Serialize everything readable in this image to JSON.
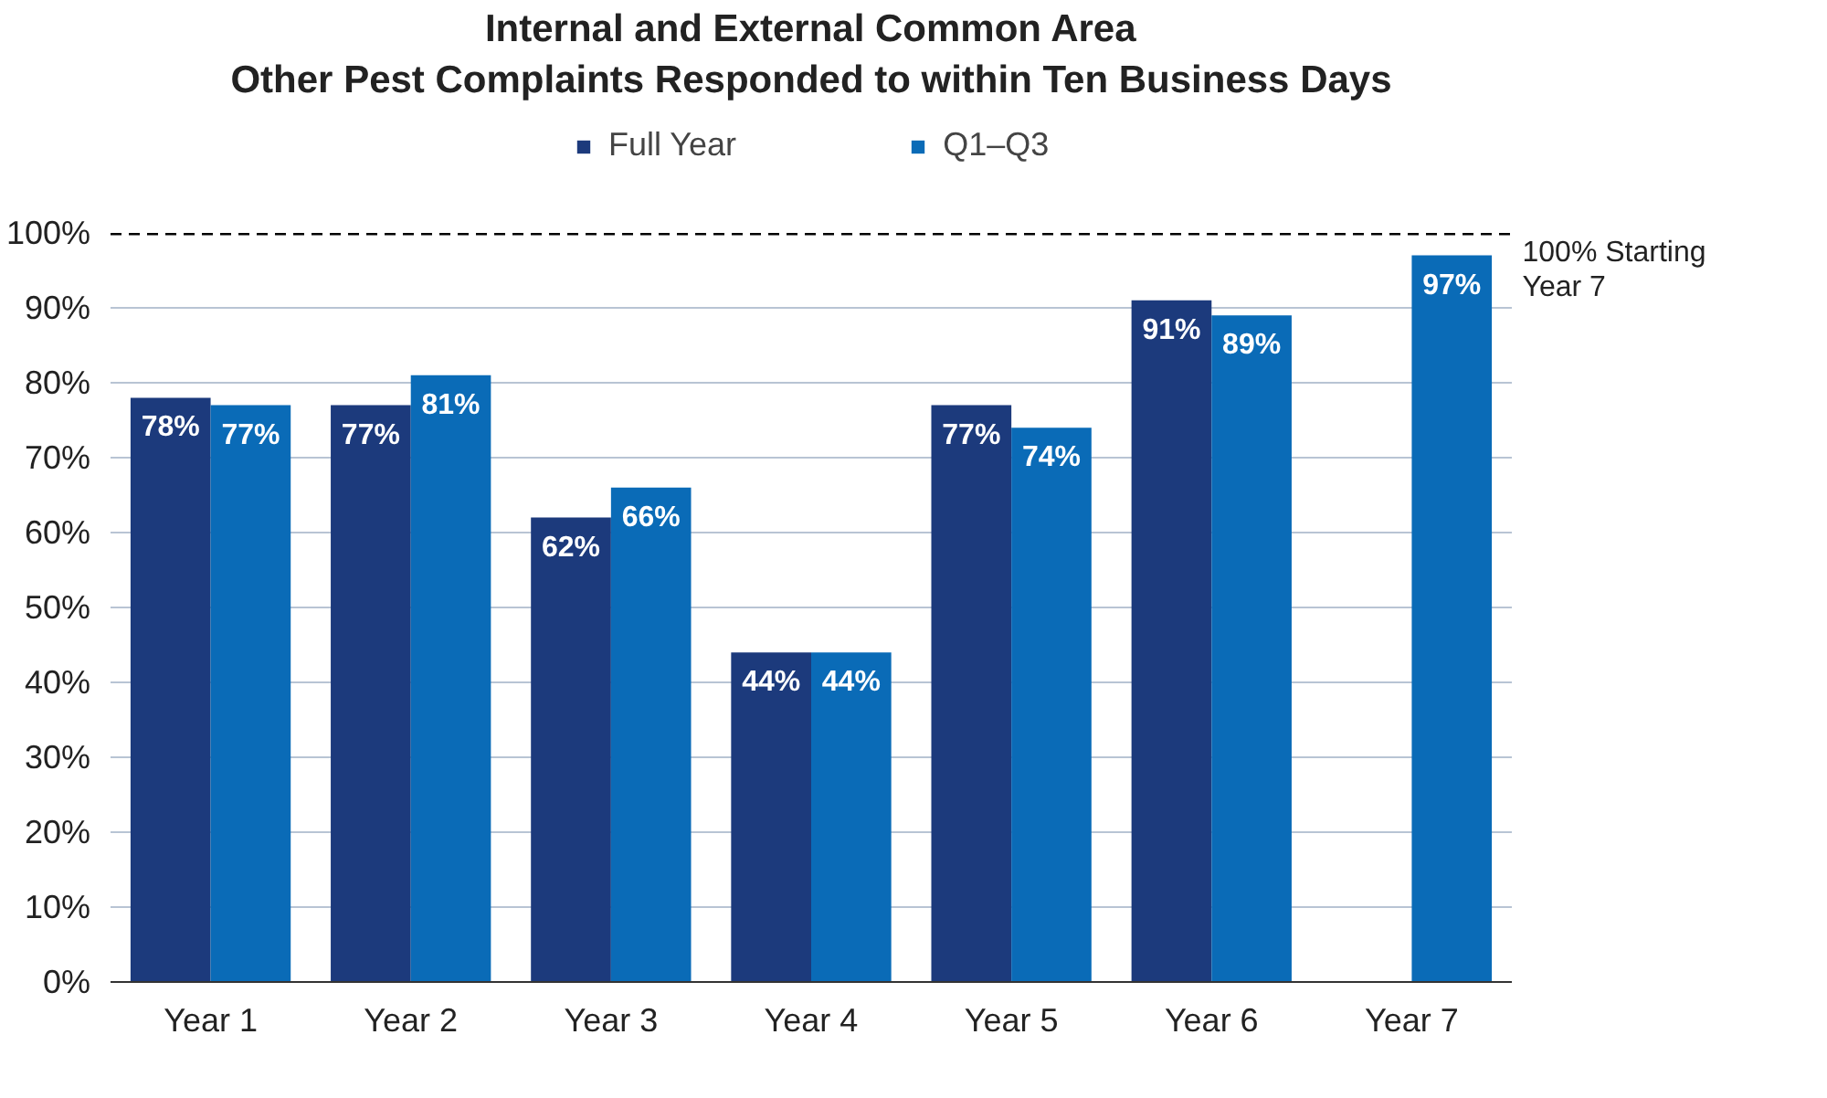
{
  "chart_data": {
    "type": "bar",
    "title": "Internal and External Common Area\nOther Pest Complaints Responded to within Ten Business Days",
    "categories": [
      "Year 1",
      "Year 2",
      "Year 3",
      "Year 4",
      "Year 5",
      "Year 6",
      "Year 7"
    ],
    "series": [
      {
        "name": "Full Year",
        "color": "#1c3a7c",
        "values": [
          78,
          77,
          62,
          44,
          77,
          91,
          null
        ],
        "value_labels": [
          "78%",
          "77%",
          "62%",
          "44%",
          "77%",
          "91%",
          null
        ]
      },
      {
        "name": "Q1–Q3",
        "color": "#0a6bb7",
        "values": [
          77,
          81,
          66,
          44,
          74,
          89,
          97
        ],
        "value_labels": [
          "77%",
          "81%",
          "66%",
          "44%",
          "74%",
          "89%",
          "97%"
        ]
      }
    ],
    "ylim": [
      0,
      100
    ],
    "yticks": [
      {
        "value": 0,
        "label": "0%"
      },
      {
        "value": 10,
        "label": "10%"
      },
      {
        "value": 20,
        "label": "20%"
      },
      {
        "value": 30,
        "label": "30%"
      },
      {
        "value": 40,
        "label": "40%"
      },
      {
        "value": 50,
        "label": "50%"
      },
      {
        "value": 60,
        "label": "60%"
      },
      {
        "value": 70,
        "label": "70%"
      },
      {
        "value": 80,
        "label": "80%"
      },
      {
        "value": 90,
        "label": "90%"
      },
      {
        "value": 100,
        "label": "100%"
      }
    ],
    "ref_lines": [
      {
        "axis": "y",
        "value": 100,
        "label": "100% Starting\nYear 7",
        "color": "#000000",
        "line_style": "dashed"
      }
    ],
    "grid": "y",
    "legend": "top"
  }
}
